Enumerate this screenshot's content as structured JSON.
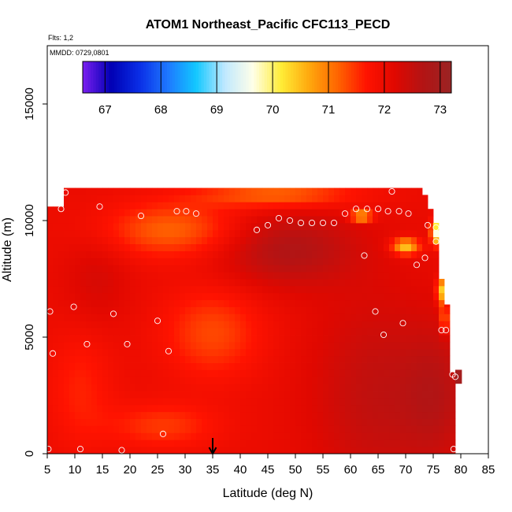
{
  "chart_data": {
    "type": "heatmap",
    "title": "ATOM1 Northeast_Pacific CFC113_PECD",
    "annotations": {
      "flights": "Flts: 1,2",
      "dates": "MMDD: 0729,0801"
    },
    "xlabel": "Latitude (deg N)",
    "ylabel": "Altitude (m)",
    "xlim": [
      5,
      85
    ],
    "ylim": [
      0,
      17500
    ],
    "x_ticks": [
      5,
      10,
      15,
      20,
      25,
      30,
      35,
      40,
      45,
      50,
      55,
      60,
      65,
      70,
      75,
      80,
      85
    ],
    "y_ticks": [
      0,
      5000,
      10000,
      15000
    ],
    "colorbar": {
      "range": [
        66.6,
        73.2
      ],
      "ticks": [
        67,
        68,
        69,
        70,
        71,
        72,
        73
      ],
      "palette": [
        "#7b1ff0",
        "#0000b4",
        "#0a2ee6",
        "#1e78ff",
        "#12c8ff",
        "#bfe8ff",
        "#ffffe8",
        "#ffec36",
        "#ffa70d",
        "#ff6400",
        "#ff1300",
        "#e00800",
        "#b31414",
        "#9a2424"
      ]
    },
    "arrow_latitude": 35,
    "grid": false,
    "legend": "top colorbar",
    "observations": [
      {
        "lat": 5.2,
        "alt": 200
      },
      {
        "lat": 5.5,
        "alt": 6100
      },
      {
        "lat": 6,
        "alt": 4300
      },
      {
        "lat": 7.5,
        "alt": 10500
      },
      {
        "lat": 8.3,
        "alt": 11200
      },
      {
        "lat": 9.8,
        "alt": 6300
      },
      {
        "lat": 11,
        "alt": 200
      },
      {
        "lat": 12.2,
        "alt": 4700
      },
      {
        "lat": 14.5,
        "alt": 10600
      },
      {
        "lat": 17,
        "alt": 6000
      },
      {
        "lat": 18.5,
        "alt": 150
      },
      {
        "lat": 19.5,
        "alt": 4700
      },
      {
        "lat": 22,
        "alt": 10200
      },
      {
        "lat": 25,
        "alt": 5700
      },
      {
        "lat": 26,
        "alt": 850
      },
      {
        "lat": 27,
        "alt": 4400
      },
      {
        "lat": 28.5,
        "alt": 10400
      },
      {
        "lat": 30.2,
        "alt": 10400
      },
      {
        "lat": 32,
        "alt": 10300
      },
      {
        "lat": 43,
        "alt": 9600
      },
      {
        "lat": 45,
        "alt": 9800
      },
      {
        "lat": 47,
        "alt": 10100
      },
      {
        "lat": 49,
        "alt": 10000
      },
      {
        "lat": 51,
        "alt": 9900
      },
      {
        "lat": 53,
        "alt": 9900
      },
      {
        "lat": 55,
        "alt": 9900
      },
      {
        "lat": 57,
        "alt": 9900
      },
      {
        "lat": 59,
        "alt": 10300
      },
      {
        "lat": 61,
        "alt": 10500
      },
      {
        "lat": 63,
        "alt": 10500
      },
      {
        "lat": 65,
        "alt": 10500
      },
      {
        "lat": 66.8,
        "alt": 10400
      },
      {
        "lat": 68.8,
        "alt": 10400
      },
      {
        "lat": 70.5,
        "alt": 10300
      },
      {
        "lat": 67.5,
        "alt": 11250
      },
      {
        "lat": 62.5,
        "alt": 8500
      },
      {
        "lat": 64.5,
        "alt": 6100
      },
      {
        "lat": 66,
        "alt": 5100
      },
      {
        "lat": 69.5,
        "alt": 5600
      },
      {
        "lat": 72,
        "alt": 8100
      },
      {
        "lat": 73.5,
        "alt": 8400
      },
      {
        "lat": 74,
        "alt": 9800
      },
      {
        "lat": 75.5,
        "alt": 9700
      },
      {
        "lat": 75.5,
        "alt": 9100
      },
      {
        "lat": 76.5,
        "alt": 5300
      },
      {
        "lat": 77.3,
        "alt": 5300
      },
      {
        "lat": 78.5,
        "alt": 3400
      },
      {
        "lat": 79,
        "alt": 3300
      },
      {
        "lat": 78.7,
        "alt": 200
      }
    ]
  }
}
